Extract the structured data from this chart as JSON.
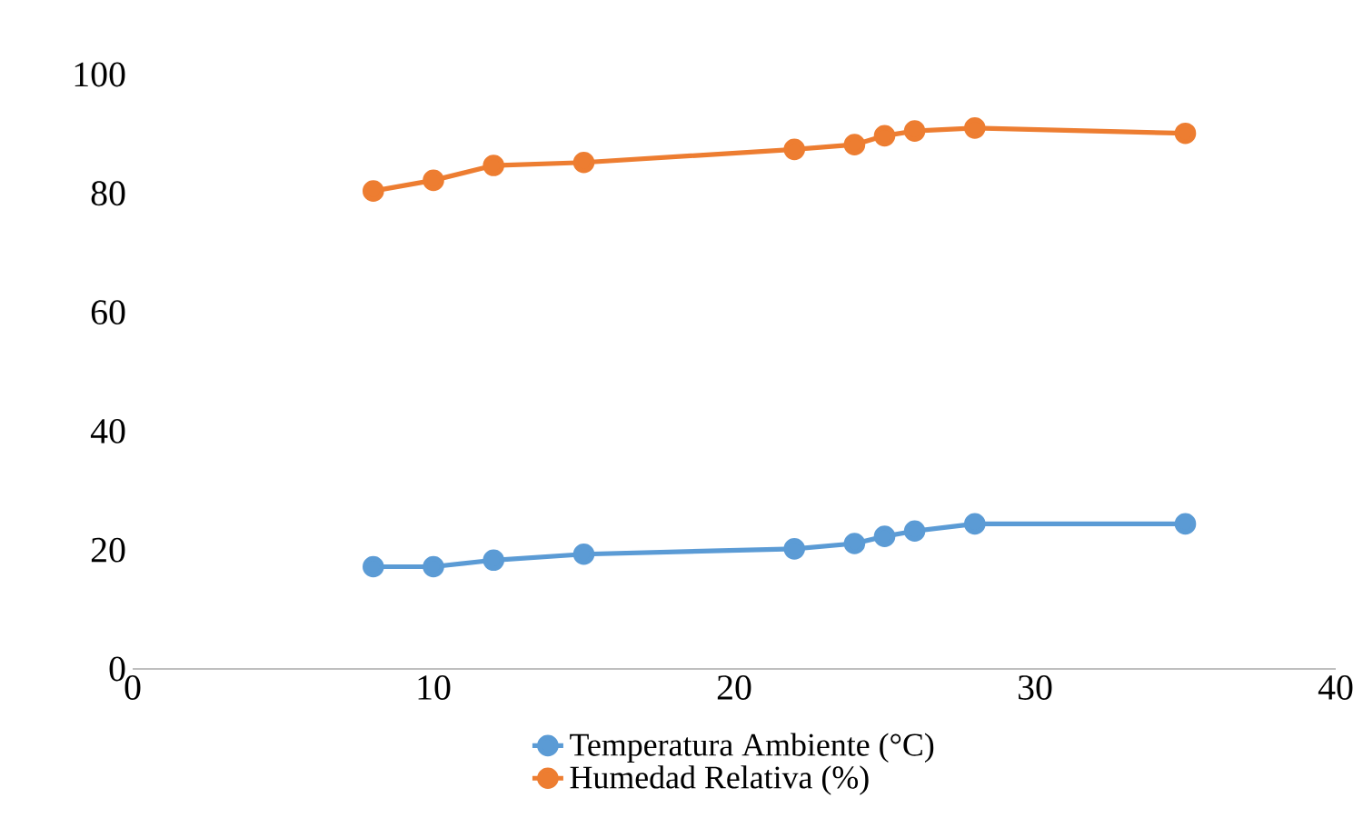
{
  "chart_data": {
    "type": "line",
    "marker": "circle",
    "line_style": "solid",
    "grid": false,
    "legend": "bottom",
    "x": [
      8,
      10,
      12,
      15,
      22,
      24,
      25,
      26,
      28,
      35
    ],
    "series": [
      {
        "name": "Temperatura Ambiente (°C)",
        "color": "#5b9bd5",
        "values": [
          17.2,
          17.2,
          18.3,
          19.3,
          20.2,
          21.1,
          22.3,
          23.2,
          24.4,
          24.4
        ]
      },
      {
        "name": "Humedad Relativa (%)",
        "color": "#ed7d31",
        "values": [
          80.4,
          82.2,
          84.7,
          85.2,
          87.4,
          88.2,
          89.7,
          90.5,
          91.0,
          90.1
        ]
      }
    ],
    "xlim": [
      0,
      40
    ],
    "xticks": [
      0,
      10,
      20,
      30,
      40
    ],
    "ylim": [
      0,
      100
    ],
    "yticks": [
      0,
      20,
      40,
      60,
      80,
      100
    ]
  }
}
